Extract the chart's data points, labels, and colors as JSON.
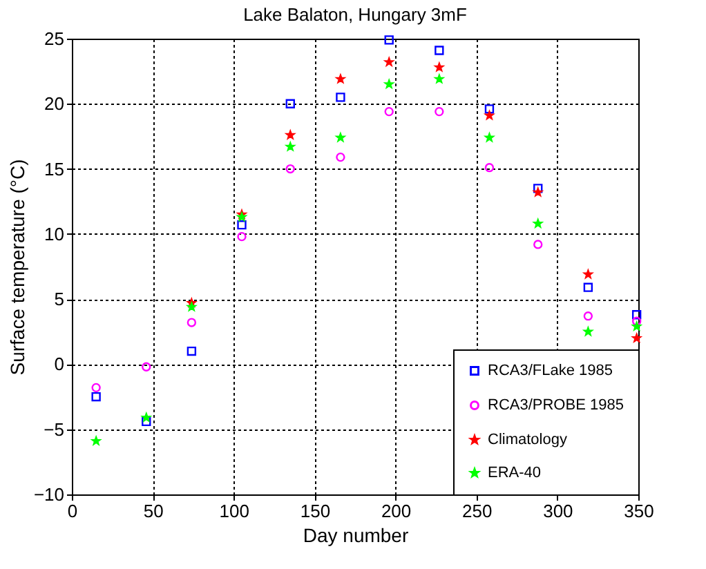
{
  "chart_data": {
    "type": "scatter",
    "title": "Lake Balaton, Hungary 3mF",
    "xlabel": "Day number",
    "ylabel": "Surface temperature (°C)",
    "x": [
      15,
      46,
      74,
      105,
      135,
      166,
      196,
      227,
      258,
      288,
      319,
      349
    ],
    "series": [
      {
        "name": "RCA3/FLake 1985",
        "color": "#0000ff",
        "marker": "square",
        "values": [
          -2.5,
          -4.4,
          1.0,
          10.7,
          20.0,
          20.5,
          24.9,
          24.1,
          19.6,
          13.5,
          5.9,
          3.8
        ]
      },
      {
        "name": "RCA3/PROBE 1985",
        "color": "#ff00ff",
        "marker": "circle",
        "values": [
          -1.8,
          -0.2,
          3.2,
          9.8,
          15.0,
          15.9,
          19.4,
          19.4,
          15.1,
          9.2,
          3.7,
          3.3
        ]
      },
      {
        "name": "Climatology",
        "color": "#ff0000",
        "marker": "star",
        "values": [
          null,
          null,
          4.7,
          11.5,
          17.6,
          21.9,
          23.2,
          22.8,
          19.1,
          13.2,
          6.9,
          2.0
        ]
      },
      {
        "name": "ERA-40",
        "color": "#00ff00",
        "marker": "star",
        "values": [
          -5.9,
          -4.1,
          4.4,
          11.3,
          16.7,
          17.4,
          21.5,
          21.9,
          17.4,
          10.8,
          2.5,
          2.9
        ]
      }
    ],
    "xlim": [
      0,
      350
    ],
    "xticks": [
      0,
      50,
      100,
      150,
      200,
      250,
      300,
      350
    ],
    "ylim": [
      -10,
      25
    ],
    "yticks": [
      -10,
      -5,
      0,
      5,
      10,
      15,
      20,
      25
    ],
    "grid": true,
    "legend": "bottom right"
  }
}
